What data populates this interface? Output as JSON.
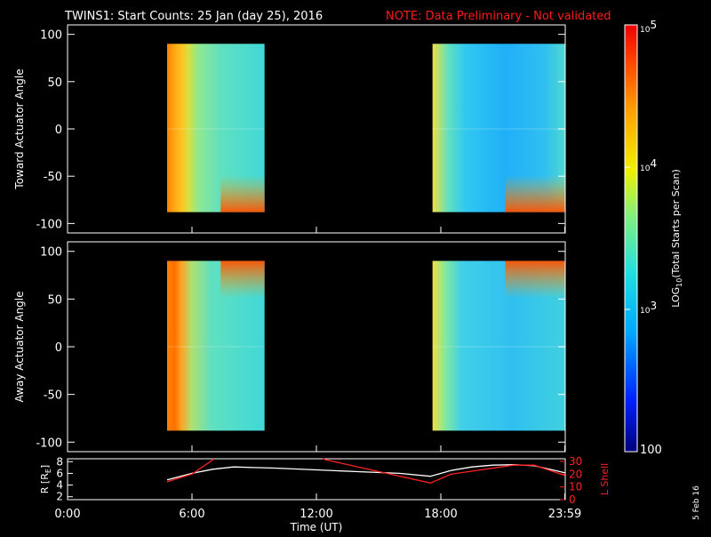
{
  "header": {
    "title": "TWINS1: Start Counts: 25 Jan (day  25), 2016",
    "note": "NOTE: Data Preliminary - Not validated"
  },
  "side_date": "5 Feb 16",
  "colors": {
    "background": "#000000",
    "axes": "#ffffff",
    "note": "#ff1a1a",
    "lshell": "#ff2020",
    "radius": "#ffffff"
  },
  "chart_data": [
    {
      "type": "heatmap",
      "name": "toward",
      "ylabel": "Toward Actuator Angle",
      "ylim": [
        -110,
        110
      ],
      "yticks": [
        -100,
        -50,
        0,
        50,
        100
      ],
      "xlim": [
        0,
        24
      ],
      "data_blocks": [
        {
          "x": [
            4.8,
            9.5
          ],
          "y": [
            -88,
            90
          ]
        },
        {
          "x": [
            17.6,
            23.98
          ],
          "y": [
            -88,
            90
          ]
        }
      ]
    },
    {
      "type": "heatmap",
      "name": "away",
      "ylabel": "Away Actuator Angle",
      "ylim": [
        -110,
        110
      ],
      "yticks": [
        -100,
        -50,
        0,
        50,
        100
      ],
      "xlim": [
        0,
        24
      ],
      "data_blocks": [
        {
          "x": [
            4.8,
            9.5
          ],
          "y": [
            -88,
            90
          ]
        },
        {
          "x": [
            17.6,
            23.98
          ],
          "y": [
            -88,
            90
          ]
        }
      ]
    },
    {
      "type": "line",
      "name": "ephemeris",
      "ylabel_left": "R [R",
      "ylabel_left_sub": "E",
      "ylabel_left_end": "]",
      "ylim_left": [
        1.5,
        8.5
      ],
      "yticks_left": [
        2,
        4,
        6,
        8
      ],
      "ylabel_right": "L Shell",
      "ylim_right": [
        0,
        32
      ],
      "yticks_right": [
        0,
        10,
        20,
        30
      ],
      "xlim": [
        0,
        24
      ],
      "xticks": [
        "0:00",
        "6:00",
        "12:00",
        "18:00",
        "23:59"
      ],
      "xtick_values": [
        0,
        6,
        12,
        18,
        23.98
      ],
      "xlabel": "Time (UT)",
      "series": [
        {
          "axis": "left",
          "x": [
            4.8,
            6,
            7,
            8,
            9,
            10,
            12,
            14,
            16,
            17.5,
            18.5,
            19.5,
            20.5,
            21.5,
            22.5,
            23.5,
            23.98
          ],
          "y": [
            4.9,
            6.0,
            6.7,
            7.1,
            7.0,
            6.9,
            6.6,
            6.3,
            6.0,
            5.5,
            6.5,
            7.1,
            7.4,
            7.5,
            7.3,
            6.5,
            6.1
          ]
        },
        {
          "axis": "right",
          "x": [
            4.8,
            6.0,
            7.0,
            7.05
          ],
          "y": [
            14,
            20,
            31,
            32
          ]
        },
        {
          "axis": "right",
          "x": [
            12.3,
            12.5,
            17.5,
            18.5,
            21.5,
            22.5,
            23.98
          ],
          "y": [
            32,
            31,
            13,
            20,
            27,
            27,
            19
          ]
        }
      ]
    }
  ],
  "colorbar": {
    "label": "LOG",
    "label_sub": "10",
    "label_end": "(Total Starts per Scan)",
    "ticks": [
      {
        "base": "10",
        "exp": "5",
        "value": 100000
      },
      {
        "base": "10",
        "exp": "4",
        "value": 10000
      },
      {
        "base": "10",
        "exp": "3",
        "value": 1000
      },
      {
        "base": "100",
        "exp": "",
        "value": 100
      }
    ],
    "range": [
      100,
      100000
    ]
  }
}
